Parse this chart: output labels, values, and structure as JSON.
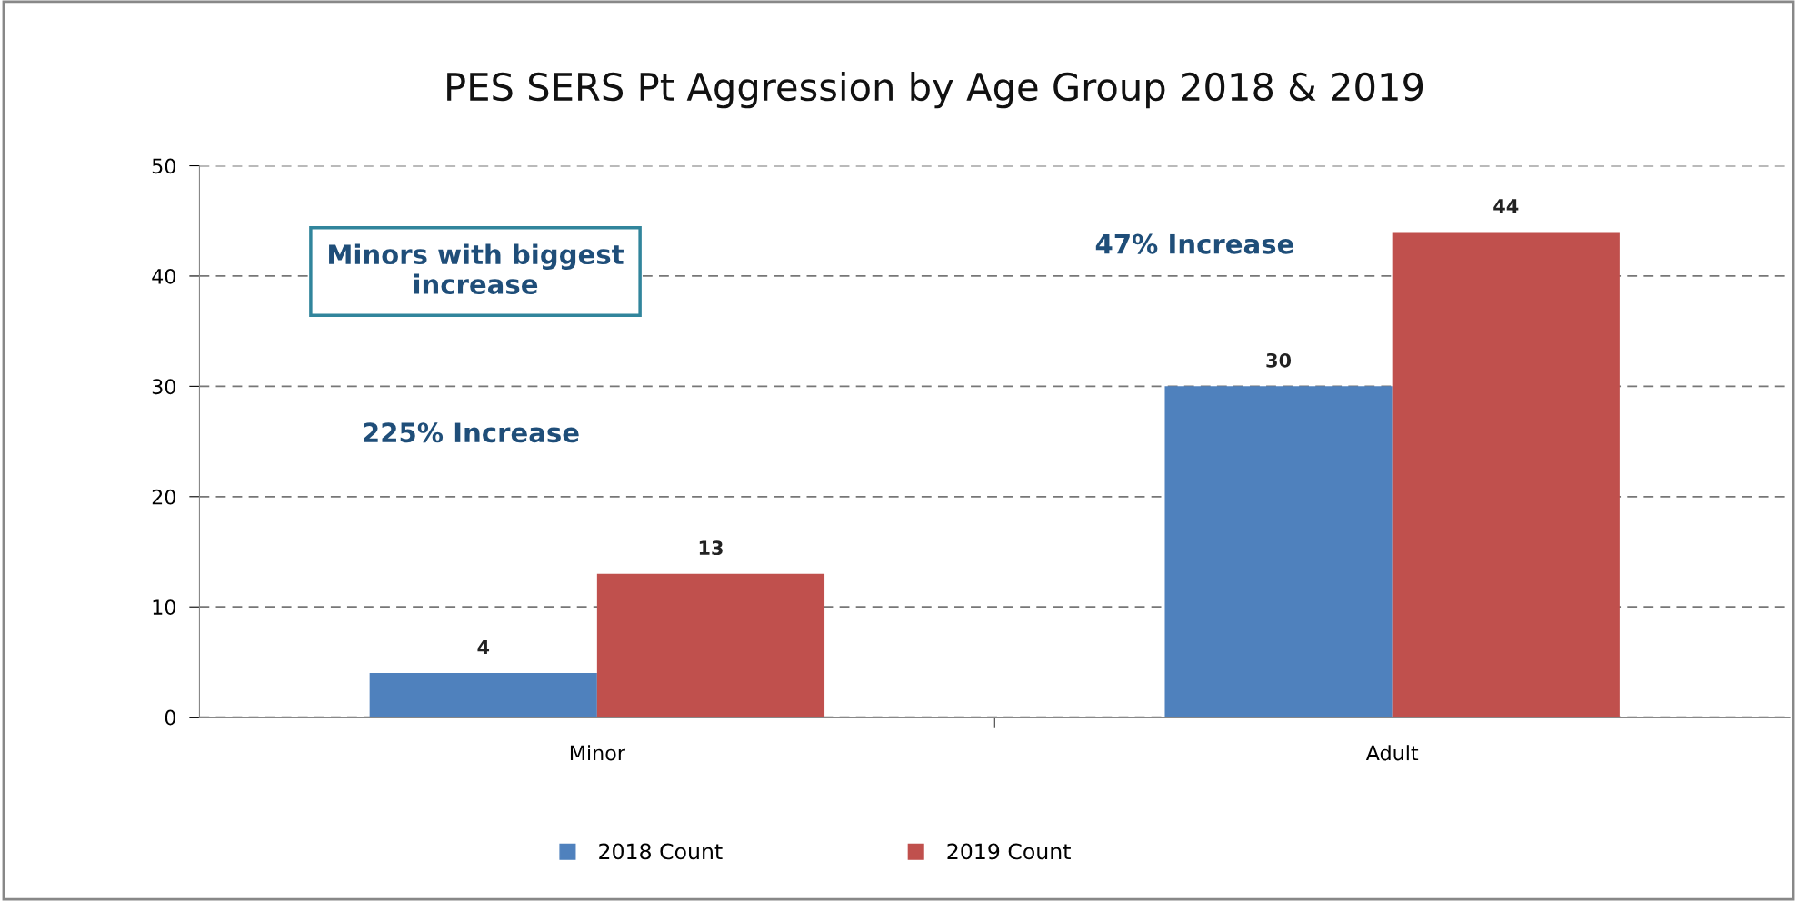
{
  "chart_data": {
    "type": "bar",
    "title": "PES SERS Pt Aggression by Age Group 2018 & 2019",
    "categories": [
      "Minor",
      "Adult"
    ],
    "series": [
      {
        "name": "2018 Count",
        "color": "#4f81bd",
        "values": [
          4,
          30
        ]
      },
      {
        "name": "2019 Count",
        "color": "#c0504d",
        "values": [
          13,
          44
        ]
      }
    ],
    "ylim": [
      0,
      50
    ],
    "yticks": [
      0,
      10,
      20,
      30,
      40,
      50
    ],
    "grid": "y",
    "data_labels": true,
    "legend": "bottom",
    "annotations": [
      "Minors with biggest increase",
      "225% Increase",
      "47% Increase"
    ]
  }
}
